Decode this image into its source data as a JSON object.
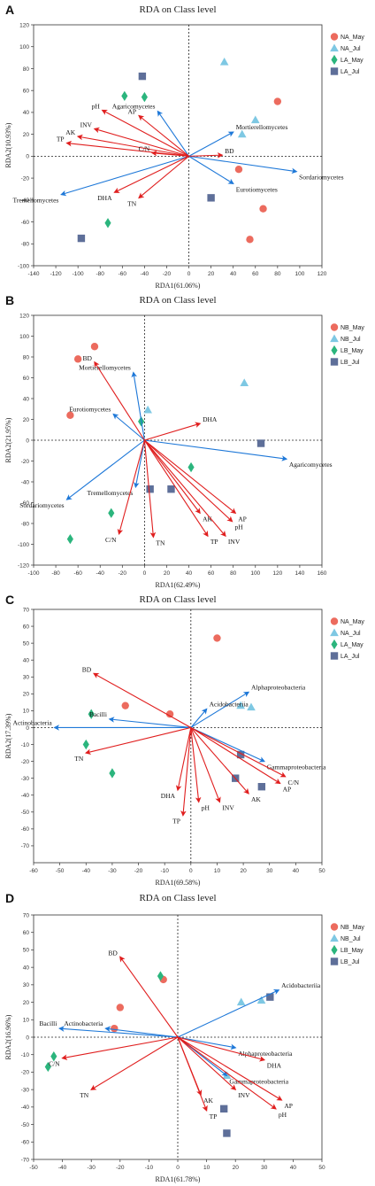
{
  "panels": [
    {
      "letter": "A",
      "title": "RDA on Class level",
      "xlabel": "RDA1(61.06%)",
      "ylabel": "RDA2(10.93%)",
      "xlim": [
        -140,
        120
      ],
      "ylim": [
        -100,
        120
      ],
      "xticks": [
        -140,
        -120,
        -100,
        -80,
        -60,
        -40,
        -20,
        0,
        20,
        40,
        60,
        80,
        100,
        120
      ],
      "yticks": [
        -100,
        -80,
        -60,
        -40,
        -20,
        0,
        20,
        40,
        60,
        80,
        100,
        120
      ],
      "legend": [
        "NA_May",
        "NA_Jul",
        "LA_May",
        "LA_Jul"
      ],
      "points": [
        {
          "g": 0,
          "x": 45,
          "y": -12
        },
        {
          "g": 0,
          "x": 67,
          "y": -48
        },
        {
          "g": 0,
          "x": 55,
          "y": -76
        },
        {
          "g": 0,
          "x": 80,
          "y": 50
        },
        {
          "g": 1,
          "x": 32,
          "y": 86
        },
        {
          "g": 1,
          "x": 60,
          "y": 33
        },
        {
          "g": 1,
          "x": 48,
          "y": 20
        },
        {
          "g": 2,
          "x": -58,
          "y": 55
        },
        {
          "g": 2,
          "x": -40,
          "y": 54
        },
        {
          "g": 2,
          "x": -73,
          "y": -61
        },
        {
          "g": 3,
          "x": -42,
          "y": 73
        },
        {
          "g": 3,
          "x": -97,
          "y": -75
        },
        {
          "g": 3,
          "x": 20,
          "y": -38
        }
      ],
      "env": [
        {
          "label": "pH",
          "x": -78,
          "y": 42
        },
        {
          "label": "AP",
          "x": -45,
          "y": 37
        },
        {
          "label": "INV",
          "x": -85,
          "y": 25
        },
        {
          "label": "AK",
          "x": -100,
          "y": 18
        },
        {
          "label": "TP",
          "x": -110,
          "y": 12
        },
        {
          "label": "C/N",
          "x": -33,
          "y": 3
        },
        {
          "label": "TN",
          "x": -45,
          "y": -38
        },
        {
          "label": "DHA",
          "x": -67,
          "y": -33
        },
        {
          "label": "BD",
          "x": 30,
          "y": 1
        }
      ],
      "species": [
        {
          "label": "Agaricomycetes",
          "x": -28,
          "y": 41
        },
        {
          "label": "Mortierellomycetes",
          "x": 40,
          "y": 22
        },
        {
          "label": "Sordariomycetes",
          "x": 97,
          "y": -14
        },
        {
          "label": "Eurotiomycetes",
          "x": 40,
          "y": -25
        },
        {
          "label": "Tremellomycetes",
          "x": -115,
          "y": -35
        }
      ]
    },
    {
      "letter": "B",
      "title": "RDA on Class level",
      "xlabel": "RDA1(62.49%)",
      "ylabel": "RDA2(21.95%)",
      "xlim": [
        -100,
        160
      ],
      "ylim": [
        -120,
        120
      ],
      "xticks": [
        -100,
        -80,
        -60,
        -40,
        -20,
        0,
        20,
        40,
        60,
        80,
        100,
        120,
        140,
        160
      ],
      "yticks": [
        -120,
        -100,
        -80,
        -60,
        -40,
        -20,
        0,
        20,
        40,
        60,
        80,
        100,
        120
      ],
      "legend": [
        "NB_May",
        "NB_Jul",
        "LB_May",
        "LB_Jul"
      ],
      "points": [
        {
          "g": 0,
          "x": -60,
          "y": 78
        },
        {
          "g": 0,
          "x": -45,
          "y": 90
        },
        {
          "g": 0,
          "x": -67,
          "y": 24
        },
        {
          "g": 1,
          "x": 3,
          "y": 29
        },
        {
          "g": 1,
          "x": 90,
          "y": 55
        },
        {
          "g": 2,
          "x": -3,
          "y": 18
        },
        {
          "g": 2,
          "x": 42,
          "y": -26
        },
        {
          "g": 2,
          "x": -30,
          "y": -70
        },
        {
          "g": 2,
          "x": -67,
          "y": -95
        },
        {
          "g": 3,
          "x": 105,
          "y": -3
        },
        {
          "g": 3,
          "x": 5,
          "y": -47
        },
        {
          "g": 3,
          "x": 24,
          "y": -47
        }
      ],
      "env": [
        {
          "label": "BD",
          "x": -45,
          "y": 75
        },
        {
          "label": "DHA",
          "x": 50,
          "y": 16
        },
        {
          "label": "AP",
          "x": 82,
          "y": -70
        },
        {
          "label": "pH",
          "x": 79,
          "y": -78
        },
        {
          "label": "AK",
          "x": 50,
          "y": -70
        },
        {
          "label": "TP",
          "x": 57,
          "y": -92
        },
        {
          "label": "INV",
          "x": 73,
          "y": -92
        },
        {
          "label": "TN",
          "x": 8,
          "y": -93
        },
        {
          "label": "C/N",
          "x": -23,
          "y": -90
        }
      ],
      "species": [
        {
          "label": "Mortierellomycetes",
          "x": -10,
          "y": 65
        },
        {
          "label": "Eurotiomycetes",
          "x": -28,
          "y": 25
        },
        {
          "label": "Agaricomycetes",
          "x": 128,
          "y": -18
        },
        {
          "label": "Tremellomycetes",
          "x": -8,
          "y": -45
        },
        {
          "label": "Sordariomycetes",
          "x": -70,
          "y": -57
        }
      ]
    },
    {
      "letter": "C",
      "title": "RDA on Class level",
      "xlabel": "RDA1(69.58%)",
      "ylabel": "RDA2(17.39%)",
      "xlim": [
        -60,
        50
      ],
      "ylim": [
        -80,
        70
      ],
      "xticks": [
        -60,
        -50,
        -40,
        -30,
        -20,
        -10,
        0,
        10,
        20,
        30,
        40,
        50
      ],
      "yticks": [
        -70,
        -60,
        -50,
        -40,
        -30,
        -20,
        -10,
        0,
        10,
        20,
        30,
        40,
        50,
        60,
        70
      ],
      "legend": [
        "NA_May",
        "NA_Jul",
        "LA_May",
        "LA_Jul"
      ],
      "points": [
        {
          "g": 0,
          "x": 10,
          "y": 53
        },
        {
          "g": 0,
          "x": -25,
          "y": 13
        },
        {
          "g": 0,
          "x": -8,
          "y": 8
        },
        {
          "g": 1,
          "x": 19,
          "y": 13
        },
        {
          "g": 1,
          "x": 23,
          "y": 12
        },
        {
          "g": 2,
          "x": -38,
          "y": 8
        },
        {
          "g": 2,
          "x": -40,
          "y": -10
        },
        {
          "g": 2,
          "x": -30,
          "y": -27
        },
        {
          "g": 3,
          "x": 19,
          "y": -16
        },
        {
          "g": 3,
          "x": 17,
          "y": -30
        },
        {
          "g": 3,
          "x": 27,
          "y": -35
        }
      ],
      "env": [
        {
          "label": "BD",
          "x": -37,
          "y": 32
        },
        {
          "label": "TN",
          "x": -40,
          "y": -15
        },
        {
          "label": "DHA",
          "x": -5,
          "y": -37
        },
        {
          "label": "TP",
          "x": -3,
          "y": -52
        },
        {
          "label": "pH",
          "x": 3,
          "y": -44
        },
        {
          "label": "INV",
          "x": 11,
          "y": -44
        },
        {
          "label": "AK",
          "x": 22,
          "y": -39
        },
        {
          "label": "AP",
          "x": 34,
          "y": -33
        },
        {
          "label": "C/N",
          "x": 36,
          "y": -29
        }
      ],
      "species": [
        {
          "label": "Alphaproteobacteria",
          "x": 22,
          "y": 21
        },
        {
          "label": "Acidobacteriia",
          "x": 6,
          "y": 11
        },
        {
          "label": "Bacilli",
          "x": -31,
          "y": 5
        },
        {
          "label": "Actinobacteria",
          "x": -52,
          "y": 0
        },
        {
          "label": "Gammaproteobacteria",
          "x": 28,
          "y": -20
        }
      ]
    },
    {
      "letter": "D",
      "title": "RDA on Class level",
      "xlabel": "RDA1(61.78%)",
      "ylabel": "RDA2(16.96%)",
      "xlim": [
        -50,
        50
      ],
      "ylim": [
        -70,
        70
      ],
      "xticks": [
        -50,
        -40,
        -30,
        -20,
        -10,
        0,
        10,
        20,
        30,
        40,
        50
      ],
      "yticks": [
        -70,
        -60,
        -50,
        -40,
        -30,
        -20,
        -10,
        0,
        10,
        20,
        30,
        40,
        50,
        60,
        70
      ],
      "legend": [
        "NB_May",
        "NB_Jul",
        "LB_May",
        "LB_Jul"
      ],
      "points": [
        {
          "g": 0,
          "x": -5,
          "y": 33
        },
        {
          "g": 0,
          "x": -20,
          "y": 17
        },
        {
          "g": 0,
          "x": -22,
          "y": 5
        },
        {
          "g": 1,
          "x": 22,
          "y": 20
        },
        {
          "g": 1,
          "x": 29,
          "y": 21
        },
        {
          "g": 1,
          "x": 17,
          "y": -22
        },
        {
          "g": 2,
          "x": -6,
          "y": 35
        },
        {
          "g": 2,
          "x": -43,
          "y": -11
        },
        {
          "g": 2,
          "x": -45,
          "y": -17
        },
        {
          "g": 3,
          "x": 32,
          "y": 23
        },
        {
          "g": 3,
          "x": 16,
          "y": -41
        },
        {
          "g": 3,
          "x": 17,
          "y": -55
        }
      ],
      "env": [
        {
          "label": "BD",
          "x": -20,
          "y": 46
        },
        {
          "label": "C/N",
          "x": -40,
          "y": -12
        },
        {
          "label": "TN",
          "x": -30,
          "y": -30
        },
        {
          "label": "AK",
          "x": 8,
          "y": -33
        },
        {
          "label": "TP",
          "x": 10,
          "y": -42
        },
        {
          "label": "INV",
          "x": 20,
          "y": -30
        },
        {
          "label": "DHA",
          "x": 30,
          "y": -13
        },
        {
          "label": "AP",
          "x": 36,
          "y": -36
        },
        {
          "label": "pH",
          "x": 34,
          "y": -41
        }
      ],
      "species": [
        {
          "label": "Acidobacteriia",
          "x": 35,
          "y": 27
        },
        {
          "label": "Actinobacteria",
          "x": -25,
          "y": 5
        },
        {
          "label": "Bacilli",
          "x": -41,
          "y": 5
        },
        {
          "label": "Alphaproteobacteria",
          "x": 20,
          "y": -6
        },
        {
          "label": "Gammaproteobacteria",
          "x": 17,
          "y": -22
        }
      ]
    }
  ],
  "colors": {
    "may_a": "#ec6b5e",
    "jul_a": "#7ec8e3",
    "may_b": "#2bb57d",
    "jul_b": "#5e6f99",
    "env": "#e01e1e",
    "species": "#1e78d8",
    "axis": "#333333"
  }
}
